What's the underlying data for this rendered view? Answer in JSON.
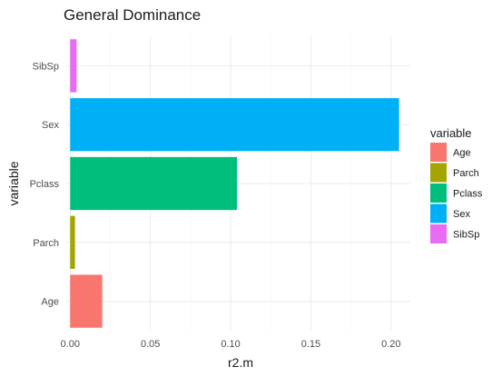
{
  "chart_data": {
    "type": "bar",
    "orientation": "horizontal",
    "title": "General Dominance",
    "xlabel": "r2.m",
    "ylabel": "variable",
    "categories": [
      "Age",
      "Parch",
      "Pclass",
      "Sex",
      "SibSp"
    ],
    "values": [
      0.02,
      0.003,
      0.104,
      0.205,
      0.004
    ],
    "colors": [
      "#F8766D",
      "#A3A500",
      "#00BF7D",
      "#00B0F6",
      "#E76BF3"
    ],
    "xlim": [
      -0.003,
      0.212
    ],
    "xticks": [
      0.0,
      0.05,
      0.1,
      0.15,
      0.2
    ],
    "xtick_labels": [
      "0.00",
      "0.05",
      "0.10",
      "0.15",
      "0.20"
    ],
    "grid": true,
    "legend": {
      "title": "variable",
      "placement": "right",
      "entries": [
        "Age",
        "Parch",
        "Pclass",
        "Sex",
        "SibSp"
      ]
    }
  }
}
